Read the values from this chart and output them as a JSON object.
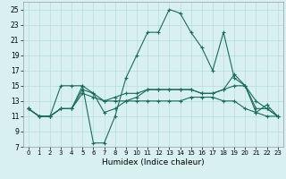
{
  "xlabel": "Humidex (Indice chaleur)",
  "background_color": "#d8f0f0",
  "grid_color": "#b8dcdc",
  "line_color": "#1a6b5a",
  "xlim": [
    -0.5,
    23.5
  ],
  "ylim": [
    7,
    26
  ],
  "xticks": [
    0,
    1,
    2,
    3,
    4,
    5,
    6,
    7,
    8,
    9,
    10,
    11,
    12,
    13,
    14,
    15,
    16,
    17,
    18,
    19,
    20,
    21,
    22,
    23
  ],
  "yticks": [
    7,
    9,
    11,
    13,
    15,
    17,
    19,
    21,
    23,
    25
  ],
  "lines": [
    {
      "x": [
        0,
        1,
        2,
        3,
        4,
        5,
        6,
        7,
        8,
        9,
        10,
        11,
        12,
        13,
        14,
        15,
        16,
        17,
        18,
        19,
        20,
        21,
        22,
        23
      ],
      "y": [
        12,
        11,
        11,
        15,
        15,
        15,
        7.5,
        7.5,
        11,
        16,
        19,
        22,
        22,
        25,
        24.5,
        22,
        20,
        17,
        22,
        16,
        15,
        12,
        12,
        11
      ]
    },
    {
      "x": [
        0,
        1,
        2,
        3,
        4,
        5,
        6,
        7,
        8,
        9,
        10,
        11,
        12,
        13,
        14,
        15,
        16,
        17,
        18,
        19,
        20,
        21,
        22,
        23
      ],
      "y": [
        12,
        11,
        11,
        12,
        12,
        14.5,
        14,
        13,
        13,
        13,
        13,
        13,
        13,
        13,
        13,
        13.5,
        13.5,
        13.5,
        13,
        13,
        12,
        11.5,
        11,
        11
      ]
    },
    {
      "x": [
        0,
        1,
        2,
        3,
        4,
        5,
        6,
        7,
        8,
        9,
        10,
        11,
        12,
        13,
        14,
        15,
        16,
        17,
        18,
        19,
        20,
        21,
        22,
        23
      ],
      "y": [
        12,
        11,
        11,
        12,
        12,
        14,
        13.5,
        13,
        13.5,
        14,
        14,
        14.5,
        14.5,
        14.5,
        14.5,
        14.5,
        14,
        14,
        14.5,
        15,
        15,
        13,
        12,
        11
      ]
    },
    {
      "x": [
        0,
        1,
        2,
        3,
        4,
        5,
        6,
        7,
        8,
        9,
        10,
        11,
        12,
        13,
        14,
        15,
        16,
        17,
        18,
        19,
        20,
        21,
        22,
        23
      ],
      "y": [
        12,
        11,
        11,
        12,
        12,
        15,
        14,
        11.5,
        12,
        13,
        13.5,
        14.5,
        14.5,
        14.5,
        14.5,
        14.5,
        14,
        14,
        14.5,
        16.5,
        15,
        11.5,
        12.5,
        11
      ]
    }
  ]
}
